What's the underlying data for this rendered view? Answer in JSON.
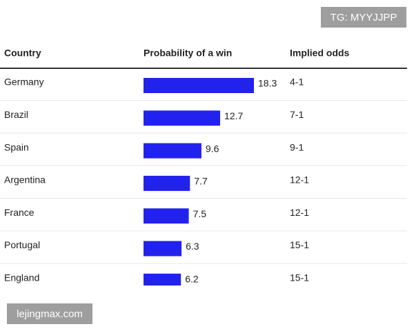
{
  "chart_data": {
    "type": "bar",
    "headers": [
      "Country",
      "Probability of a win",
      "Implied odds"
    ],
    "categories": [
      "Germany",
      "Brazil",
      "Spain",
      "Argentina",
      "France",
      "Portugal",
      "England"
    ],
    "values": [
      18.3,
      12.7,
      9.6,
      7.7,
      7.5,
      6.3,
      6.2
    ],
    "odds": [
      "4-1",
      "7-1",
      "9-1",
      "12-1",
      "12-1",
      "15-1",
      "15-1"
    ],
    "color": "#2222ee"
  },
  "watermarks": [
    "TG: MYYJJPP",
    "lejingmax.com"
  ]
}
